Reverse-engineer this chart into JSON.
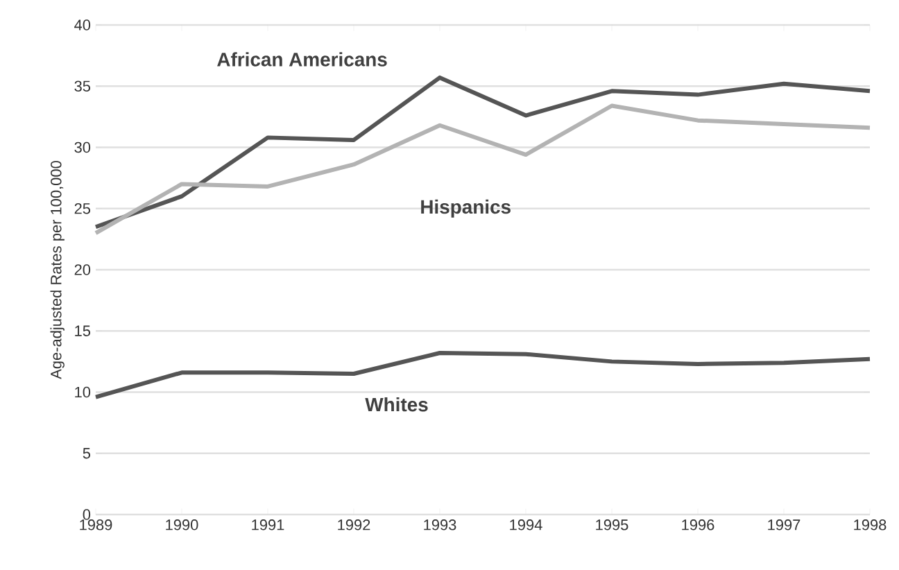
{
  "chart_data": {
    "type": "line",
    "ylabel": "Age-adjusted Rates per 100,000",
    "categories": [
      "1989",
      "1990",
      "1991",
      "1992",
      "1993",
      "1994",
      "1995",
      "1996",
      "1997",
      "1998"
    ],
    "series": [
      {
        "name": "African Americans",
        "color": "#555555",
        "values": [
          23.5,
          26,
          30.8,
          30.6,
          35.7,
          32.6,
          34.6,
          34.3,
          35.2,
          34.6
        ]
      },
      {
        "name": "Hispanics",
        "color": "#b3b3b3",
        "values": [
          23,
          27,
          26.8,
          28.6,
          31.8,
          29.4,
          33.4,
          32.2,
          31.9,
          31.6
        ]
      },
      {
        "name": "Whites",
        "color": "#555555",
        "values": [
          9.6,
          11.6,
          11.6,
          11.5,
          13.2,
          13.1,
          12.5,
          12.3,
          12.4,
          12.7
        ]
      }
    ],
    "ylim": [
      0,
      40
    ],
    "yticks": [
      0,
      5,
      10,
      15,
      20,
      25,
      30,
      35,
      40
    ],
    "grid": "y",
    "legend": false,
    "marker": "none",
    "line_style": "solid"
  }
}
